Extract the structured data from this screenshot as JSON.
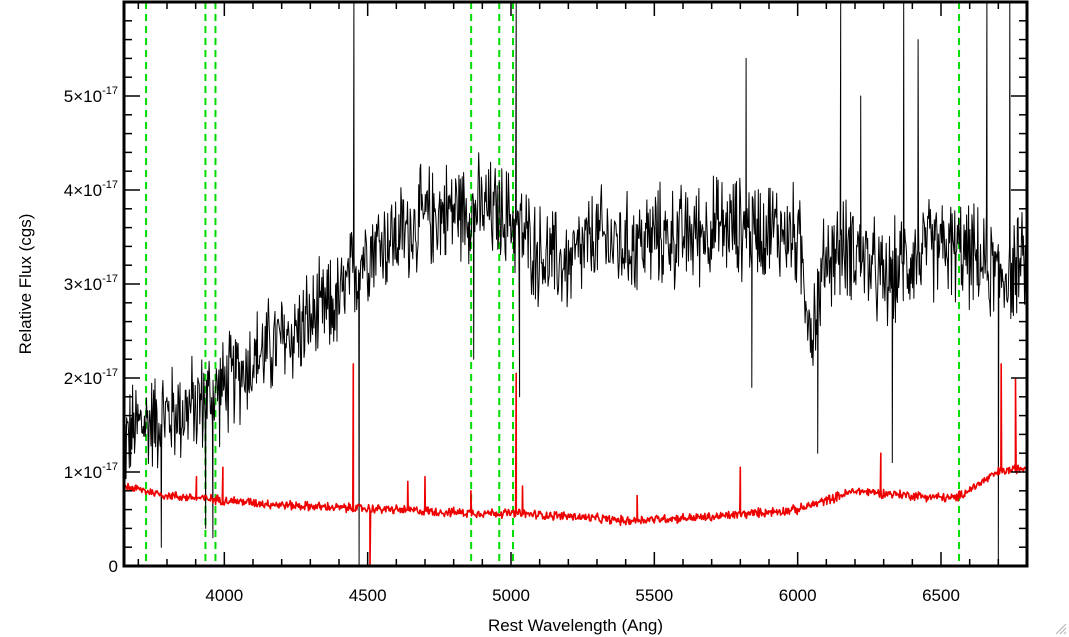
{
  "chart_data": {
    "type": "line",
    "title": "",
    "xlabel": "Rest Wavelength (Ang)",
    "ylabel": "Relative Flux (cgs)",
    "xlim": [
      3650,
      6800
    ],
    "ylim": [
      0,
      6e-17
    ],
    "x_ticks": [
      {
        "value": 4000,
        "label": "4000"
      },
      {
        "value": 4500,
        "label": "4500"
      },
      {
        "value": 5000,
        "label": "5000"
      },
      {
        "value": 5500,
        "label": "5500"
      },
      {
        "value": 6000,
        "label": "6000"
      },
      {
        "value": 6500,
        "label": "6500"
      }
    ],
    "y_ticks": [
      {
        "value": 0,
        "mantissa": "0",
        "exp": ""
      },
      {
        "value": 1e-17,
        "mantissa": "1×10",
        "exp": "-17"
      },
      {
        "value": 2e-17,
        "mantissa": "2×10",
        "exp": "-17"
      },
      {
        "value": 3e-17,
        "mantissa": "3×10",
        "exp": "-17"
      },
      {
        "value": 4e-17,
        "mantissa": "4×10",
        "exp": "-17"
      },
      {
        "value": 5e-17,
        "mantissa": "5×10",
        "exp": "-17"
      }
    ],
    "x_minor_step": 100,
    "y_minor_step": 2e-18,
    "vlines": [
      3727,
      3934,
      3969,
      4861,
      4959,
      5007,
      6563
    ],
    "vline_color": "#00dd00",
    "series": [
      {
        "color": "#000000",
        "noise_amplitude": 5.5e-18,
        "x": [
          3650,
          3700,
          3800,
          3900,
          4000,
          4100,
          4200,
          4300,
          4400,
          4450,
          4500,
          4600,
          4700,
          4800,
          4900,
          5000,
          5100,
          5200,
          5300,
          5400,
          5500,
          5600,
          5700,
          5800,
          5900,
          6000,
          6050,
          6100,
          6200,
          6300,
          6400,
          6500,
          6600,
          6700,
          6800
        ],
        "y": [
          1.3e-17,
          1.5e-17,
          1.6e-17,
          1.7e-17,
          1.9e-17,
          2.2e-17,
          2.4e-17,
          2.6e-17,
          2.8e-17,
          3.1e-17,
          3.4e-17,
          3.5e-17,
          3.7e-17,
          3.8e-17,
          3.8e-17,
          3.7e-17,
          3.3e-17,
          3.2e-17,
          3.5e-17,
          3.4e-17,
          3.5e-17,
          3.5e-17,
          3.6e-17,
          3.6e-17,
          3.6e-17,
          3.5e-17,
          2.5e-17,
          3.3e-17,
          3.4e-17,
          3e-17,
          3.3e-17,
          3.4e-17,
          3.3e-17,
          3.1e-17,
          3.2e-17
        ],
        "spikes": [
          {
            "x": 3780,
            "y": 2e-18
          },
          {
            "x": 3935,
            "y": 4e-18
          },
          {
            "x": 3960,
            "y": 3e-18
          },
          {
            "x": 4452,
            "y": 6e-17
          },
          {
            "x": 4470,
            "y": 0.0
          },
          {
            "x": 4870,
            "y": 2.2e-17
          },
          {
            "x": 5018,
            "y": 6e-17
          },
          {
            "x": 5030,
            "y": 1.8e-17
          },
          {
            "x": 5820,
            "y": 5.4e-17
          },
          {
            "x": 5840,
            "y": 1.9e-17
          },
          {
            "x": 6070,
            "y": 1.2e-17
          },
          {
            "x": 6150,
            "y": 6e-17
          },
          {
            "x": 6220,
            "y": 5e-17
          },
          {
            "x": 6330,
            "y": 1.1e-17
          },
          {
            "x": 6370,
            "y": 6e-17
          },
          {
            "x": 6420,
            "y": 5.6e-17
          },
          {
            "x": 6660,
            "y": 6e-17
          },
          {
            "x": 6700,
            "y": 0.0
          },
          {
            "x": 6740,
            "y": 6e-17
          }
        ]
      },
      {
        "color": "#ee0000",
        "noise_amplitude": 5e-19,
        "x": [
          3650,
          3800,
          4000,
          4200,
          4400,
          4600,
          4800,
          5000,
          5200,
          5400,
          5500,
          5700,
          5800,
          6000,
          6100,
          6200,
          6400,
          6550,
          6700,
          6800
        ],
        "y": [
          8.5e-18,
          7.5e-18,
          7e-18,
          6.5e-18,
          6.2e-18,
          6e-18,
          5.7e-18,
          5.6e-18,
          5.3e-18,
          4.8e-18,
          5e-18,
          5.2e-18,
          5.5e-18,
          6e-18,
          7e-18,
          8e-18,
          7.5e-18,
          7.2e-18,
          1e-17,
          1.05e-17
        ],
        "spikes": [
          {
            "x": 3903,
            "y": 9.5e-18
          },
          {
            "x": 3995,
            "y": 1.05e-17
          },
          {
            "x": 4450,
            "y": 2.15e-17
          },
          {
            "x": 4508,
            "y": 0.0
          },
          {
            "x": 4640,
            "y": 9e-18
          },
          {
            "x": 4700,
            "y": 9.5e-18
          },
          {
            "x": 4860,
            "y": 8e-18
          },
          {
            "x": 5018,
            "y": 2.05e-17
          },
          {
            "x": 5040,
            "y": 8.5e-18
          },
          {
            "x": 5440,
            "y": 7.5e-18
          },
          {
            "x": 5800,
            "y": 1.05e-17
          },
          {
            "x": 6290,
            "y": 1.2e-17
          },
          {
            "x": 6710,
            "y": 2.15e-17
          },
          {
            "x": 6760,
            "y": 2e-17
          }
        ]
      }
    ]
  }
}
